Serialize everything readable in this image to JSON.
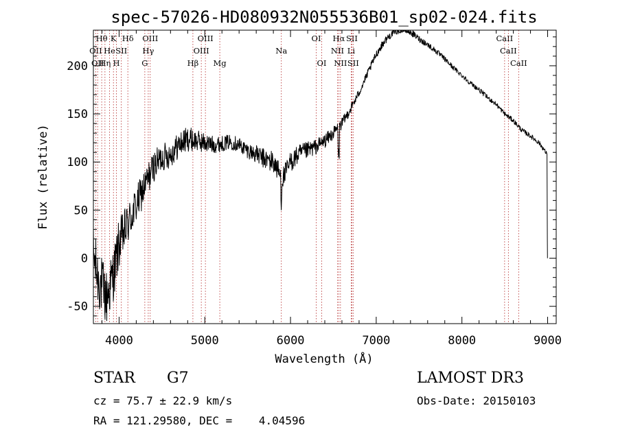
{
  "chart_data": {
    "type": "line",
    "title": "spec-57026-HD080932N055536B01_sp02-024.fits",
    "xlabel": "Wavelength (Å)",
    "ylabel": "Flux (relative)",
    "xlim": [
      3700,
      9100
    ],
    "ylim": [
      -68,
      237
    ],
    "xticks": [
      4000,
      5000,
      6000,
      7000,
      8000,
      9000
    ],
    "yticks": [
      -50,
      0,
      50,
      100,
      150,
      200
    ],
    "grid": false,
    "series": [
      {
        "name": "spectrum",
        "anchors": [
          [
            3700,
            5
          ],
          [
            3750,
            -20
          ],
          [
            3800,
            -30
          ],
          [
            3850,
            -42
          ],
          [
            3900,
            -28
          ],
          [
            3950,
            -10
          ],
          [
            4000,
            15
          ],
          [
            4050,
            25
          ],
          [
            4100,
            35
          ],
          [
            4200,
            55
          ],
          [
            4300,
            75
          ],
          [
            4400,
            95
          ],
          [
            4500,
            105
          ],
          [
            4600,
            108
          ],
          [
            4700,
            118
          ],
          [
            4800,
            124
          ],
          [
            4900,
            122
          ],
          [
            5000,
            120
          ],
          [
            5100,
            118
          ],
          [
            5200,
            119
          ],
          [
            5300,
            121
          ],
          [
            5400,
            118
          ],
          [
            5500,
            112
          ],
          [
            5600,
            108
          ],
          [
            5700,
            103
          ],
          [
            5800,
            100
          ],
          [
            5850,
            92
          ],
          [
            5900,
            82
          ],
          [
            5950,
            90
          ],
          [
            6000,
            100
          ],
          [
            6100,
            108
          ],
          [
            6200,
            112
          ],
          [
            6300,
            116
          ],
          [
            6400,
            122
          ],
          [
            6500,
            130
          ],
          [
            6600,
            140
          ],
          [
            6700,
            155
          ],
          [
            6800,
            172
          ],
          [
            6900,
            192
          ],
          [
            7000,
            212
          ],
          [
            7100,
            226
          ],
          [
            7200,
            235
          ],
          [
            7300,
            238
          ],
          [
            7400,
            235
          ],
          [
            7500,
            228
          ],
          [
            7600,
            222
          ],
          [
            7700,
            215
          ],
          [
            7800,
            207
          ],
          [
            7900,
            198
          ],
          [
            8000,
            190
          ],
          [
            8100,
            182
          ],
          [
            8200,
            175
          ],
          [
            8300,
            167
          ],
          [
            8400,
            160
          ],
          [
            8500,
            150
          ],
          [
            8600,
            143
          ],
          [
            8700,
            133
          ],
          [
            8800,
            127
          ],
          [
            8900,
            120
          ],
          [
            8950,
            114
          ],
          [
            8990,
            108
          ],
          [
            9000,
            0
          ]
        ],
        "noise": [
          [
            3700,
            30
          ],
          [
            3800,
            32
          ],
          [
            3950,
            28
          ],
          [
            4050,
            24
          ],
          [
            4200,
            20
          ],
          [
            4400,
            16
          ],
          [
            4600,
            14
          ],
          [
            4800,
            13
          ],
          [
            5000,
            10
          ],
          [
            5200,
            8
          ],
          [
            5500,
            8
          ],
          [
            5800,
            12
          ],
          [
            6000,
            11
          ],
          [
            6300,
            8
          ],
          [
            6600,
            6
          ],
          [
            6800,
            4
          ],
          [
            7000,
            4
          ],
          [
            7400,
            3.5
          ],
          [
            8000,
            2.5
          ],
          [
            8500,
            2.5
          ],
          [
            9000,
            2.5
          ]
        ]
      }
    ],
    "line_markers": [
      {
        "wavelength": 3727,
        "label": "OII",
        "row": 2
      },
      {
        "wavelength": 3750,
        "label": "OII",
        "row": 3
      },
      {
        "wavelength": 3797,
        "label": "Hθ",
        "row": 1
      },
      {
        "wavelength": 3835,
        "label": "Hη",
        "row": 3
      },
      {
        "wavelength": 3889,
        "label": "He",
        "row": 2
      },
      {
        "wavelength": 3934,
        "label": "K",
        "row": 1
      },
      {
        "wavelength": 3969,
        "label": "H",
        "row": 3
      },
      {
        "wavelength": 4026,
        "label": "SII",
        "row": 2
      },
      {
        "wavelength": 4102,
        "label": "Hδ",
        "row": 1
      },
      {
        "wavelength": 4300,
        "label": "G",
        "row": 3
      },
      {
        "wavelength": 4340,
        "label": "Hγ",
        "row": 2
      },
      {
        "wavelength": 4363,
        "label": "OIII",
        "row": 1
      },
      {
        "wavelength": 4861,
        "label": "Hβ",
        "row": 3
      },
      {
        "wavelength": 4959,
        "label": "OIII",
        "row": 2
      },
      {
        "wavelength": 5007,
        "label": "OIII",
        "row": 1
      },
      {
        "wavelength": 5175,
        "label": "Mg",
        "row": 3
      },
      {
        "wavelength": 5893,
        "label": "Na",
        "row": 2
      },
      {
        "wavelength": 6300,
        "label": "OI",
        "row": 1
      },
      {
        "wavelength": 6364,
        "label": "OI",
        "row": 3
      },
      {
        "wavelength": 6548,
        "label": "NII",
        "row": 2
      },
      {
        "wavelength": 6563,
        "label": "Hα",
        "row": 1
      },
      {
        "wavelength": 6583,
        "label": "NII",
        "row": 3
      },
      {
        "wavelength": 6708,
        "label": "Li",
        "row": 2
      },
      {
        "wavelength": 6716,
        "label": "SII",
        "row": 1
      },
      {
        "wavelength": 6731,
        "label": "SII",
        "row": 3
      },
      {
        "wavelength": 8498,
        "label": "CaII",
        "row": 1
      },
      {
        "wavelength": 8542,
        "label": "CaII",
        "row": 2
      },
      {
        "wavelength": 8662,
        "label": "CaII",
        "row": 3
      }
    ]
  },
  "info": {
    "class_label": "STAR",
    "subclass": "G7",
    "survey": "LAMOST DR3",
    "cz": "cz = 75.7 ± 22.9 km/s",
    "obs_date": "Obs-Date: 20150103",
    "radec": "RA = 121.29580, DEC =    4.04596"
  }
}
